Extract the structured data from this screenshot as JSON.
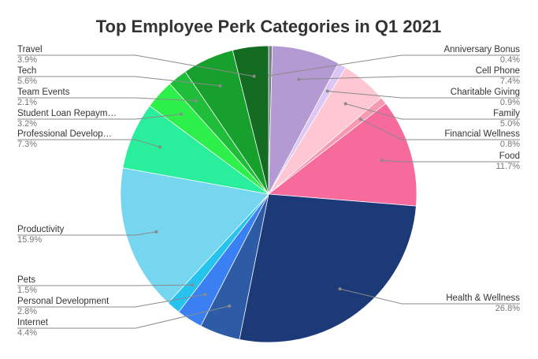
{
  "chart_data": {
    "type": "pie",
    "title": "Top Employee Perk Categories in Q1 2021",
    "slices": [
      {
        "label": "Anniversary Bonus",
        "display_label": "Anniversary Bonus",
        "value": 0.4,
        "display_value": "0.4%",
        "color": "#7a7f85"
      },
      {
        "label": "Cell Phone",
        "display_label": "Cell Phone",
        "value": 7.4,
        "display_value": "7.4%",
        "color": "#b39ad3"
      },
      {
        "label": "Charitable Giving",
        "display_label": "Charitable Giving",
        "value": 0.9,
        "display_value": "0.9%",
        "color": "#dcc6f3"
      },
      {
        "label": "Family",
        "display_label": "Family",
        "value": 5.0,
        "display_value": "5.0%",
        "color": "#fec7d3"
      },
      {
        "label": "Financial Wellness",
        "display_label": "Financial Wellness",
        "value": 0.8,
        "display_value": "0.8%",
        "color": "#f69ab0"
      },
      {
        "label": "Food",
        "display_label": "Food",
        "value": 11.7,
        "display_value": "11.7%",
        "color": "#f66a9c"
      },
      {
        "label": "Health & Wellness",
        "display_label": "Health & Wellness",
        "value": 26.8,
        "display_value": "26.8%",
        "color": "#1c3a78"
      },
      {
        "label": "Internet",
        "display_label": "Internet",
        "value": 4.4,
        "display_value": "4.4%",
        "color": "#2e5ba6"
      },
      {
        "label": "Personal Development",
        "display_label": "Personal Development",
        "value": 2.8,
        "display_value": "2.8%",
        "color": "#3b80f2"
      },
      {
        "label": "Pets",
        "display_label": "Pets",
        "value": 1.5,
        "display_value": "1.5%",
        "color": "#27c3ef"
      },
      {
        "label": "Productivity",
        "display_label": "Productivity",
        "value": 15.9,
        "display_value": "15.9%",
        "color": "#76d6ef"
      },
      {
        "label": "Professional Development",
        "display_label": "Professional Develop…",
        "value": 7.3,
        "display_value": "7.3%",
        "color": "#29ef9c"
      },
      {
        "label": "Student Loan Repayment",
        "display_label": "Student Loan Repaym…",
        "value": 3.2,
        "display_value": "3.2%",
        "color": "#2ef04a"
      },
      {
        "label": "Team Events",
        "display_label": "Team Events",
        "value": 2.1,
        "display_value": "2.1%",
        "color": "#1fbd3a"
      },
      {
        "label": "Tech",
        "display_label": "Tech",
        "value": 5.6,
        "display_value": "5.6%",
        "color": "#18a02c"
      },
      {
        "label": "Travel",
        "display_label": "Travel",
        "value": 3.9,
        "display_value": "3.9%",
        "color": "#146c23"
      }
    ],
    "start_angle": "12 o'clock",
    "direction": "clockwise",
    "legend": "none (slice labels with leader lines)"
  }
}
